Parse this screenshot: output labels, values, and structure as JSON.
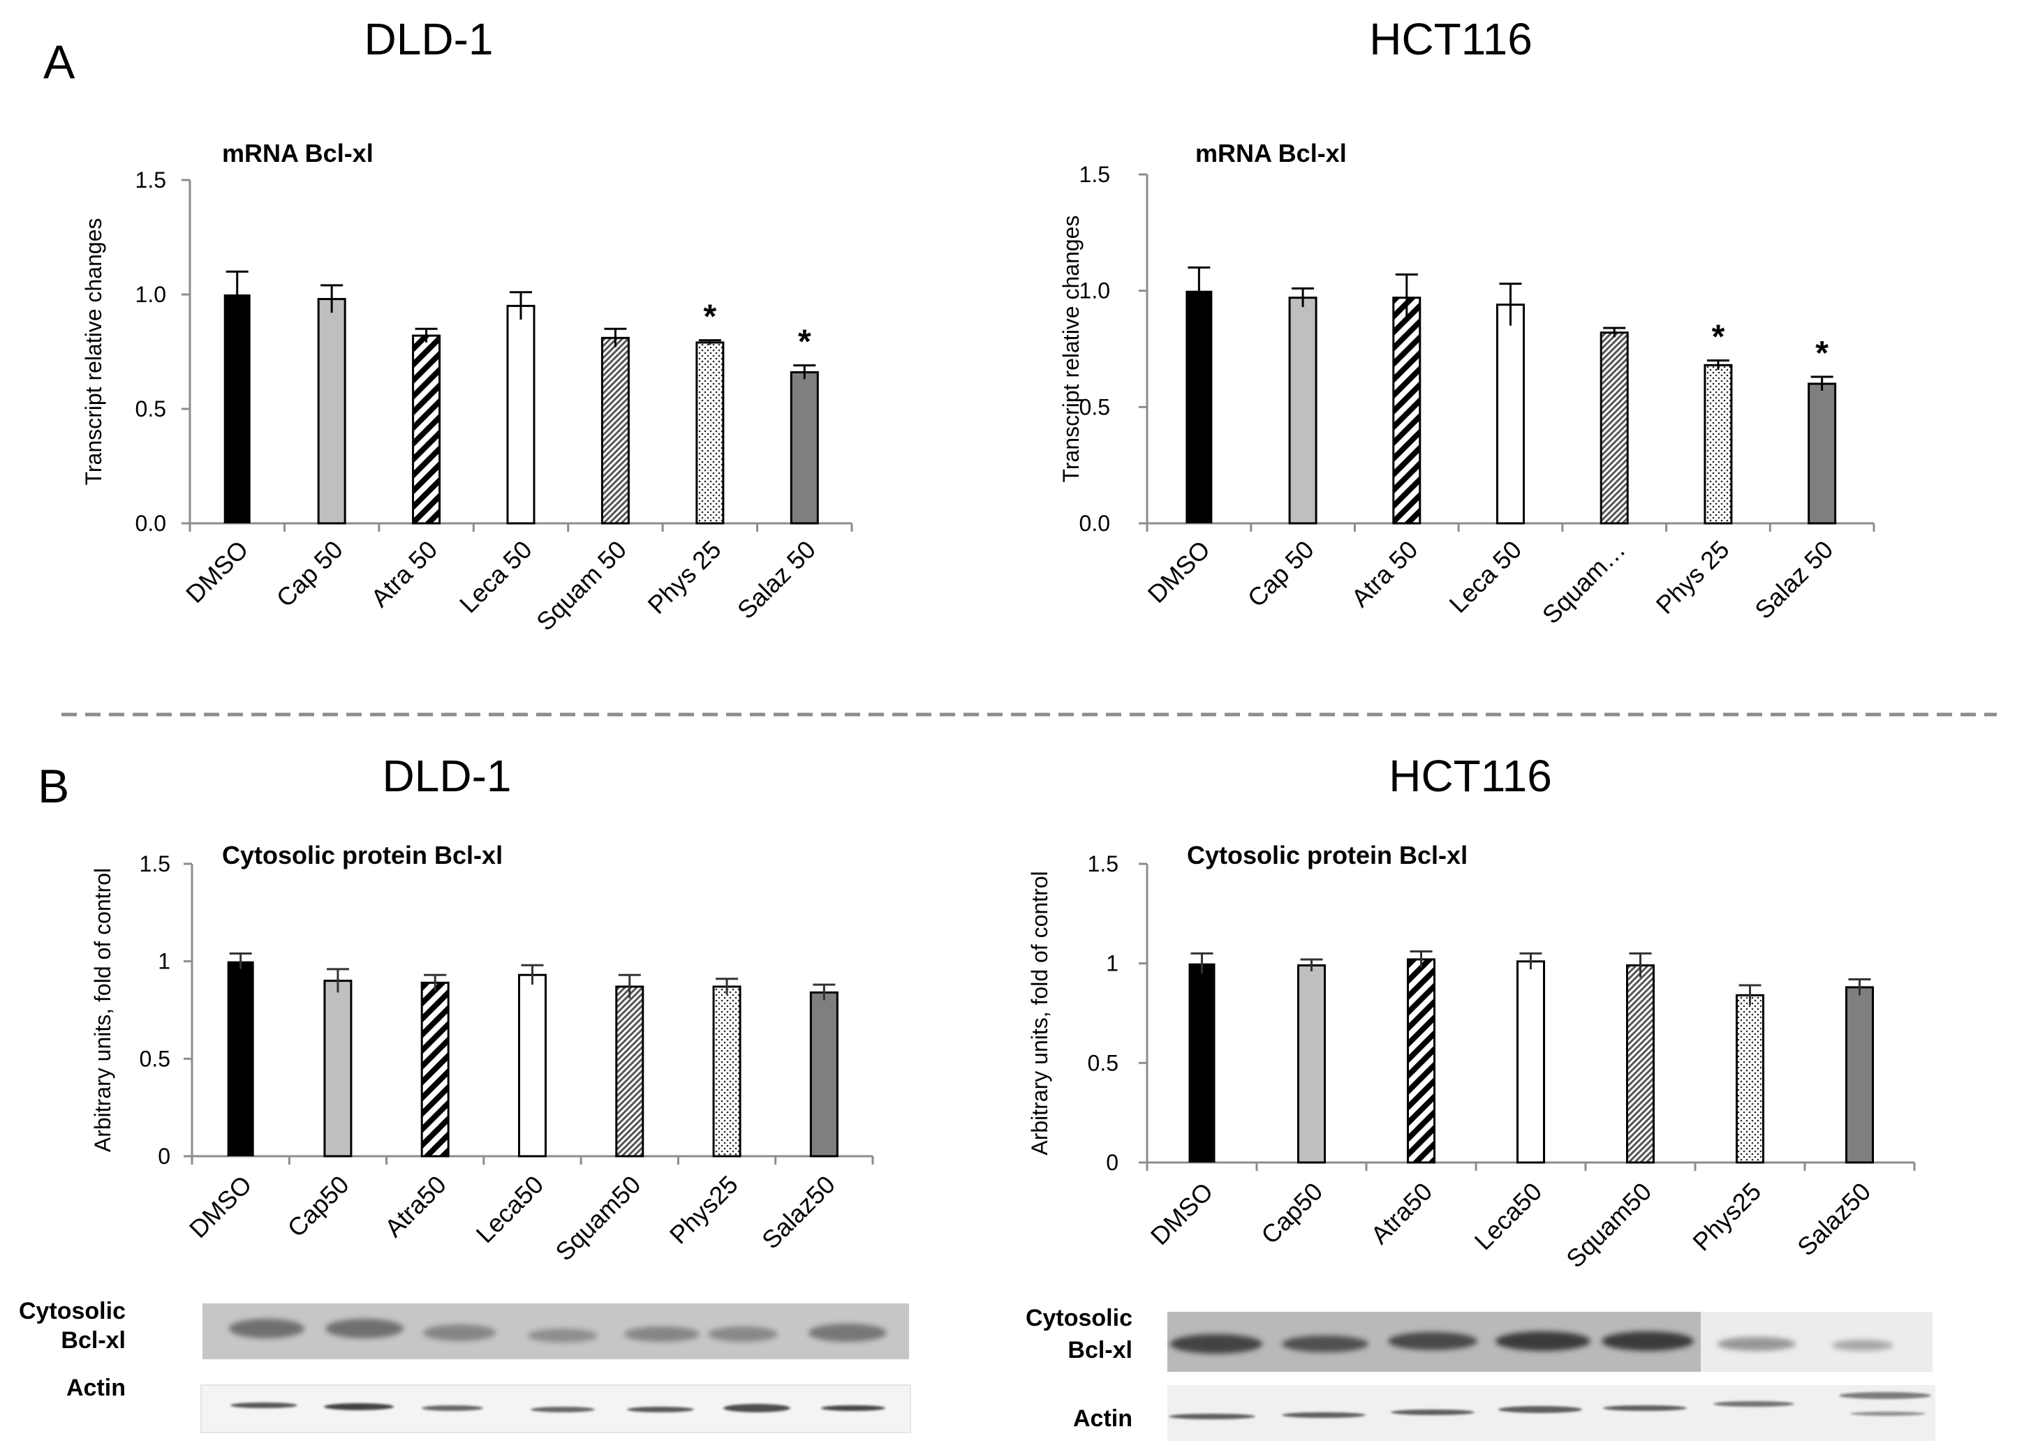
{
  "panels": {
    "A": {
      "letter": "A",
      "left_title": "DLD-1",
      "right_title": "HCT116"
    },
    "B": {
      "letter": "B",
      "left_title": "DLD-1",
      "right_title": "HCT116"
    }
  },
  "colors": {
    "dmso": "#000000",
    "cap": "#bfbfbf",
    "atra": "#ffffff",
    "leca": "#ffffff",
    "squam": "#d4d4d4",
    "phys": "#ffffff",
    "salaz": "#7f7f7f",
    "axis": "#8c8c8c",
    "divider": "#8c8c8c"
  },
  "chart_data": [
    {
      "id": "A-DLD1",
      "type": "bar",
      "title": "mRNA Bcl-xl",
      "ylabel": "Transcript relative changes",
      "xlabel": "",
      "categories": [
        "DMSO",
        "Cap 50",
        "Atra 50",
        "Leca 50",
        "Squam 50",
        "Phys 25",
        "Salaz 50"
      ],
      "patterns": [
        "dmso",
        "cap",
        "atra",
        "leca",
        "squam",
        "phys",
        "salaz"
      ],
      "values": [
        1.0,
        0.98,
        0.82,
        0.95,
        0.81,
        0.79,
        0.66
      ],
      "errors": [
        0.1,
        0.06,
        0.03,
        0.06,
        0.04,
        0.01,
        0.03
      ],
      "significant": [
        false,
        false,
        false,
        false,
        false,
        true,
        true
      ],
      "sig_marker": "*",
      "ylim": [
        0,
        1.5
      ],
      "yticks": [
        "0.0",
        "0.5",
        "1.0",
        "1.5"
      ]
    },
    {
      "id": "A-HCT116",
      "type": "bar",
      "title": "mRNA Bcl-xl",
      "ylabel": "Transcript relative changes",
      "xlabel": "",
      "categories": [
        "DMSO",
        "Cap 50",
        "Atra 50",
        "Leca 50",
        "Squam…",
        "Phys 25",
        "Salaz 50"
      ],
      "patterns": [
        "dmso",
        "cap",
        "atra",
        "leca",
        "squam",
        "phys",
        "salaz"
      ],
      "values": [
        1.0,
        0.97,
        0.97,
        0.94,
        0.82,
        0.68,
        0.6
      ],
      "errors": [
        0.1,
        0.04,
        0.1,
        0.09,
        0.02,
        0.02,
        0.03
      ],
      "significant": [
        false,
        false,
        false,
        false,
        false,
        true,
        true
      ],
      "sig_marker": "*",
      "ylim": [
        0,
        1.5
      ],
      "yticks": [
        "0.0",
        "0.5",
        "1.0",
        "1.5"
      ]
    },
    {
      "id": "B-DLD1",
      "type": "bar",
      "title": "Cytosolic protein Bcl-xl",
      "ylabel": "Arbitrary units, fold of control",
      "xlabel": "",
      "categories": [
        "DMSO",
        "Cap50",
        "Atra50",
        "Leca50",
        "Squam50",
        "Phys25",
        "Salaz50"
      ],
      "patterns": [
        "dmso",
        "cap",
        "atra",
        "leca",
        "squam",
        "phys",
        "salaz"
      ],
      "values": [
        1.0,
        0.9,
        0.89,
        0.93,
        0.87,
        0.87,
        0.84
      ],
      "errors": [
        0.04,
        0.06,
        0.04,
        0.05,
        0.06,
        0.04,
        0.04
      ],
      "significant": [
        false,
        false,
        false,
        false,
        false,
        false,
        false
      ],
      "sig_marker": "*",
      "ylim": [
        0,
        1.5
      ],
      "yticks": [
        "0",
        "0.5",
        "1",
        "1.5"
      ]
    },
    {
      "id": "B-HCT116",
      "type": "bar",
      "title": "Cytosolic protein Bcl-xl",
      "ylabel": "Arbitrary units, fold of control",
      "xlabel": "",
      "categories": [
        "DMSO",
        "Cap50",
        "Atra50",
        "Leca50",
        "Squam50",
        "Phys25",
        "Salaz50"
      ],
      "patterns": [
        "dmso",
        "cap",
        "atra",
        "leca",
        "squam",
        "phys",
        "salaz"
      ],
      "values": [
        1.0,
        0.99,
        1.02,
        1.01,
        0.99,
        0.84,
        0.88
      ],
      "errors": [
        0.05,
        0.03,
        0.04,
        0.04,
        0.06,
        0.05,
        0.04
      ],
      "significant": [
        false,
        false,
        false,
        false,
        false,
        false,
        false
      ],
      "sig_marker": "*",
      "ylim": [
        0,
        1.5
      ],
      "yticks": [
        "0",
        "0.5",
        "1",
        "1.5"
      ]
    }
  ],
  "blots": {
    "left": {
      "label_line1": "Cytosolic",
      "label_line2": "Bcl-xl",
      "actin_label": "Actin"
    },
    "right": {
      "label_line1": "Cytosolic",
      "label_line2": "Bcl-xl",
      "actin_label": "Actin"
    }
  }
}
